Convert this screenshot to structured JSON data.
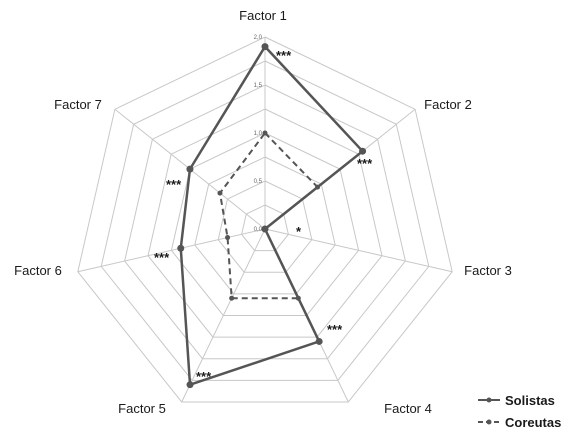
{
  "chart_data": {
    "type": "radar",
    "axes": [
      "Factor 1",
      "Factor 2",
      "Factor 3",
      "Factor 4",
      "Factor 5",
      "Factor 6",
      "Factor 7"
    ],
    "rlim": [
      0,
      2
    ],
    "ticks": [
      0,
      0.5,
      1,
      1.5,
      2
    ],
    "tick_labels": [
      "0,0",
      "0,5",
      "1,0",
      "1,5",
      "2,0"
    ],
    "grid": true,
    "legend_position": "bottom-right",
    "series": [
      {
        "name": "Solistas",
        "values": [
          1.9,
          1.3,
          0.0,
          1.3,
          1.8,
          0.9,
          1.0
        ],
        "color": "#555555",
        "style": "solid"
      },
      {
        "name": "Coreutas",
        "values": [
          1.0,
          0.7,
          0.0,
          0.8,
          0.8,
          0.4,
          0.6
        ],
        "color": "#555555",
        "style": "dashed"
      }
    ],
    "significance": [
      "***",
      "***",
      "*",
      "***",
      "***",
      "***",
      "***"
    ]
  }
}
